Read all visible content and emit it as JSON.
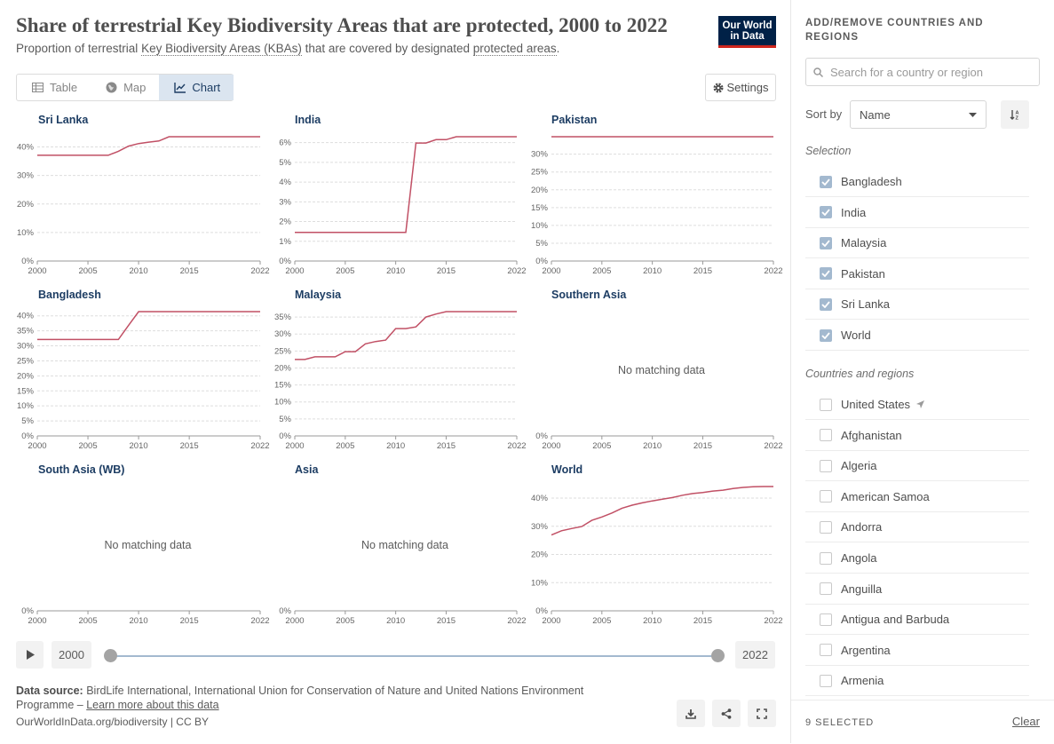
{
  "header": {
    "title": "Share of terrestrial Key Biodiversity Areas that are protected, 2000 to 2022",
    "subtitle_prefix": "Proportion of terrestrial ",
    "subtitle_link1": "Key Biodiversity Areas (KBAs)",
    "subtitle_mid": " that are covered by designated ",
    "subtitle_link2": "protected areas",
    "subtitle_suffix": ".",
    "logo_line1": "Our World",
    "logo_line2": "in Data"
  },
  "tabs": [
    {
      "label": "Table",
      "icon": "table-icon"
    },
    {
      "label": "Map",
      "icon": "globe-icon"
    },
    {
      "label": "Chart",
      "icon": "line-chart-icon",
      "active": true
    }
  ],
  "settings_label": "Settings",
  "no_data_text": "No matching data",
  "colors": {
    "line": "#c15065",
    "accent": "#1d3d63",
    "tab_active_bg": "#dbe5f0"
  },
  "chart_data": [
    {
      "type": "line",
      "title": "Sri Lanka",
      "x": [
        2000,
        2001,
        2002,
        2003,
        2004,
        2005,
        2006,
        2007,
        2008,
        2009,
        2010,
        2011,
        2012,
        2013,
        2014,
        2015,
        2016,
        2017,
        2018,
        2019,
        2020,
        2021,
        2022
      ],
      "y": [
        37.1,
        37.1,
        37.1,
        37.1,
        37.1,
        37.1,
        37.1,
        37.1,
        38.5,
        40.3,
        41.2,
        41.7,
        42.1,
        43.6,
        43.6,
        43.6,
        43.6,
        43.6,
        43.6,
        43.6,
        43.6,
        43.6,
        43.6
      ],
      "yticks": [
        "0%",
        "10%",
        "20%",
        "30%",
        "40%"
      ],
      "ylim": [
        0,
        43.6
      ],
      "xticks": [
        "2000",
        "2005",
        "2010",
        "2015",
        "2022"
      ]
    },
    {
      "type": "line",
      "title": "India",
      "x": [
        2000,
        2001,
        2002,
        2003,
        2004,
        2005,
        2006,
        2007,
        2008,
        2009,
        2010,
        2011,
        2012,
        2013,
        2014,
        2015,
        2016,
        2017,
        2018,
        2019,
        2020,
        2021,
        2022
      ],
      "y": [
        1.45,
        1.45,
        1.45,
        1.45,
        1.45,
        1.45,
        1.45,
        1.45,
        1.45,
        1.45,
        1.45,
        1.45,
        5.98,
        5.98,
        6.15,
        6.15,
        6.3,
        6.3,
        6.3,
        6.3,
        6.3,
        6.3,
        6.3
      ],
      "yticks": [
        "0%",
        "1%",
        "2%",
        "3%",
        "4%",
        "5%",
        "6%"
      ],
      "ylim": [
        0,
        6.3
      ],
      "xticks": [
        "2000",
        "2005",
        "2010",
        "2015",
        "2022"
      ]
    },
    {
      "type": "line",
      "title": "Pakistan",
      "x": [
        2000,
        2022
      ],
      "y": [
        34.9,
        34.9
      ],
      "yticks": [
        "0%",
        "5%",
        "10%",
        "15%",
        "20%",
        "25%",
        "30%"
      ],
      "ylim": [
        0,
        34.9
      ],
      "xticks": [
        "2000",
        "2005",
        "2010",
        "2015",
        "2022"
      ]
    },
    {
      "type": "line",
      "title": "Bangladesh",
      "x": [
        2000,
        2001,
        2002,
        2003,
        2004,
        2005,
        2006,
        2007,
        2008,
        2009,
        2010,
        2011,
        2012,
        2013,
        2014,
        2015,
        2016,
        2017,
        2018,
        2019,
        2020,
        2021,
        2022
      ],
      "y": [
        32.1,
        32.1,
        32.1,
        32.1,
        32.1,
        32.1,
        32.1,
        32.1,
        32.1,
        36.8,
        41.4,
        41.4,
        41.4,
        41.4,
        41.4,
        41.4,
        41.4,
        41.4,
        41.4,
        41.4,
        41.4,
        41.4,
        41.4
      ],
      "yticks": [
        "0%",
        "5%",
        "10%",
        "15%",
        "20%",
        "25%",
        "30%",
        "35%",
        "40%"
      ],
      "ylim": [
        0,
        41.4
      ],
      "xticks": [
        "2000",
        "2005",
        "2010",
        "2015",
        "2022"
      ]
    },
    {
      "type": "line",
      "title": "Malaysia",
      "x": [
        2000,
        2001,
        2002,
        2003,
        2004,
        2005,
        2006,
        2007,
        2008,
        2009,
        2010,
        2011,
        2012,
        2013,
        2014,
        2015,
        2016,
        2017,
        2018,
        2019,
        2020,
        2021,
        2022
      ],
      "y": [
        22.5,
        22.5,
        23.3,
        23.3,
        23.3,
        24.8,
        24.8,
        27.1,
        27.8,
        28.2,
        31.6,
        31.6,
        32.1,
        35.0,
        35.9,
        36.6,
        36.6,
        36.6,
        36.6,
        36.6,
        36.6,
        36.6,
        36.6
      ],
      "yticks": [
        "0%",
        "5%",
        "10%",
        "15%",
        "20%",
        "25%",
        "30%",
        "35%"
      ],
      "ylim": [
        0,
        36.6
      ],
      "xticks": [
        "2000",
        "2005",
        "2010",
        "2015",
        "2022"
      ]
    },
    {
      "type": "line",
      "title": "Southern Asia",
      "no_data": true,
      "yticks": [
        "0%"
      ],
      "xticks": [
        "2000",
        "2005",
        "2010",
        "2015",
        "2022"
      ]
    },
    {
      "type": "line",
      "title": "South Asia (WB)",
      "no_data": true,
      "yticks": [
        "0%"
      ],
      "xticks": [
        "2000",
        "2005",
        "2010",
        "2015",
        "2022"
      ]
    },
    {
      "type": "line",
      "title": "Asia",
      "no_data": true,
      "yticks": [
        "0%"
      ],
      "xticks": [
        "2000",
        "2005",
        "2010",
        "2015",
        "2022"
      ]
    },
    {
      "type": "line",
      "title": "World",
      "x": [
        2000,
        2001,
        2002,
        2003,
        2004,
        2005,
        2006,
        2007,
        2008,
        2009,
        2010,
        2011,
        2012,
        2013,
        2014,
        2015,
        2016,
        2017,
        2018,
        2019,
        2020,
        2021,
        2022
      ],
      "y": [
        26.9,
        28.4,
        29.2,
        29.9,
        32.1,
        33.3,
        34.7,
        36.4,
        37.5,
        38.3,
        39.0,
        39.6,
        40.2,
        41.0,
        41.6,
        42.0,
        42.5,
        42.8,
        43.4,
        43.8,
        44.0,
        44.1,
        44.1
      ],
      "yticks": [
        "0%",
        "10%",
        "20%",
        "30%",
        "40%"
      ],
      "ylim": [
        0,
        44.1
      ],
      "xticks": [
        "2000",
        "2005",
        "2010",
        "2015",
        "2022"
      ]
    }
  ],
  "timeline": {
    "start": "2000",
    "end": "2022",
    "start_fraction": 0,
    "end_fraction": 1
  },
  "footer": {
    "source_label": "Data source:",
    "source_text": " BirdLife International, International Union for Conservation of Nature and United Nations Environment Programme – ",
    "learn_more": "Learn more about this data",
    "license": "OurWorldInData.org/biodiversity | CC BY"
  },
  "sidebar": {
    "title": "ADD/REMOVE COUNTRIES AND REGIONS",
    "search_placeholder": "Search for a country or region",
    "sort_label": "Sort by",
    "sort_value": "Name",
    "selection_label": "Selection",
    "selected": [
      "Bangladesh",
      "India",
      "Malaysia",
      "Pakistan",
      "Sri Lanka",
      "World"
    ],
    "regions_label": "Countries and regions",
    "regions": [
      "United States",
      "Afghanistan",
      "Algeria",
      "American Samoa",
      "Andorra",
      "Angola",
      "Anguilla",
      "Antigua and Barbuda",
      "Argentina",
      "Armenia"
    ],
    "selected_count": "9 SELECTED",
    "clear_label": "Clear"
  }
}
